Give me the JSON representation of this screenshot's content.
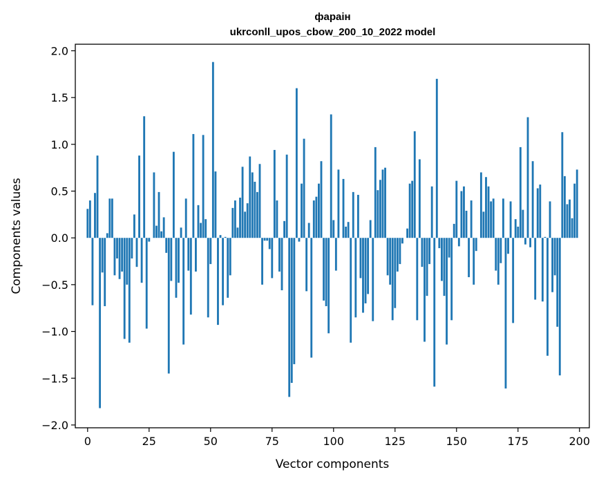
{
  "chart_data": {
    "type": "bar",
    "title": "фараін",
    "subtitle": "ukrconll_upos_cbow_200_10_2022 model",
    "xlabel": "Vector components",
    "ylabel": "Components values",
    "xlim": [
      -5,
      204
    ],
    "ylim": [
      -2.03,
      2.07
    ],
    "xticks": [
      0,
      25,
      50,
      75,
      100,
      125,
      150,
      175,
      200
    ],
    "xtick_labels": [
      "0",
      "25",
      "50",
      "75",
      "100",
      "125",
      "150",
      "175",
      "200"
    ],
    "yticks": [
      2.0,
      1.5,
      1.0,
      0.5,
      0.0,
      -0.5,
      -1.0,
      -1.5,
      -2.0
    ],
    "ytick_labels": [
      "2.0",
      "1.5",
      "1.0",
      "0.5",
      "0.0",
      "−0.5",
      "−1.0",
      "−1.5",
      "−2.0"
    ],
    "grid": false,
    "bar_color": "#1f77b4",
    "values": [
      0.31,
      0.4,
      -0.72,
      0.48,
      0.88,
      -1.82,
      -0.37,
      -0.73,
      0.05,
      0.42,
      0.42,
      -0.4,
      -0.22,
      -0.44,
      -0.36,
      -1.08,
      -0.5,
      -1.12,
      -0.22,
      0.25,
      -0.31,
      0.88,
      -0.48,
      1.3,
      -0.97,
      -0.04,
      0.0,
      0.7,
      0.13,
      0.49,
      0.07,
      0.22,
      -0.16,
      -1.45,
      -0.46,
      0.92,
      -0.64,
      -0.48,
      0.11,
      -1.14,
      0.42,
      -0.35,
      -0.82,
      1.11,
      -0.36,
      0.35,
      0.16,
      1.1,
      0.2,
      -0.85,
      -0.28,
      1.88,
      0.71,
      -0.93,
      0.03,
      -0.72,
      0.01,
      -0.64,
      -0.4,
      0.32,
      0.4,
      0.11,
      0.43,
      0.76,
      0.28,
      0.37,
      0.87,
      0.7,
      0.6,
      0.49,
      0.79,
      -0.5,
      -0.03,
      -0.03,
      -0.12,
      -0.43,
      0.94,
      0.4,
      -0.36,
      -0.56,
      0.18,
      0.89,
      -1.7,
      -1.55,
      -1.35,
      1.6,
      -0.04,
      0.58,
      1.06,
      -0.57,
      0.16,
      -1.28,
      0.4,
      0.44,
      0.58,
      0.82,
      -0.67,
      -0.73,
      -1.02,
      1.32,
      0.19,
      -0.35,
      0.73,
      0.0,
      0.63,
      0.12,
      0.17,
      -1.12,
      0.49,
      -0.85,
      0.46,
      -0.43,
      -0.8,
      -0.7,
      -0.6,
      0.19,
      -0.89,
      0.97,
      0.51,
      0.62,
      0.73,
      0.75,
      -0.4,
      -0.5,
      -0.88,
      -0.75,
      -0.36,
      -0.28,
      -0.06,
      0.0,
      0.1,
      0.58,
      0.61,
      1.14,
      -0.88,
      0.84,
      -0.31,
      -1.11,
      -0.62,
      -0.28,
      0.55,
      -1.59,
      1.7,
      -0.11,
      -0.46,
      -0.62,
      -1.14,
      -0.21,
      -0.88,
      0.15,
      0.61,
      -0.09,
      0.5,
      0.55,
      0.29,
      -0.42,
      0.4,
      -0.5,
      -0.14,
      0.0,
      0.7,
      0.28,
      0.65,
      0.55,
      0.39,
      0.42,
      -0.35,
      -0.5,
      -0.27,
      0.42,
      -1.61,
      -0.17,
      0.39,
      -0.91,
      0.2,
      0.12,
      0.97,
      0.3,
      -0.07,
      1.29,
      -0.1,
      0.82,
      -0.66,
      0.53,
      0.57,
      -0.68,
      0.01,
      -1.26,
      0.39,
      -0.58,
      -0.4,
      -0.95,
      -1.47,
      1.13,
      0.66,
      0.36,
      0.41,
      0.21,
      0.58,
      0.73
    ]
  }
}
